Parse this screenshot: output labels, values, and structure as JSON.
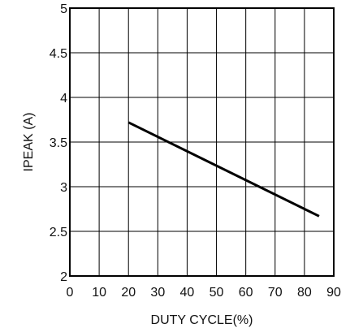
{
  "chart_data": {
    "type": "line",
    "title": "",
    "xlabel": "DUTY CYCLE(%)",
    "ylabel": "IPEAK (A)",
    "xlim": [
      0,
      90
    ],
    "ylim": [
      2,
      5
    ],
    "x_ticks": [
      0,
      10,
      20,
      30,
      40,
      50,
      60,
      70,
      80,
      90
    ],
    "y_ticks": [
      2,
      2.5,
      3,
      3.5,
      4,
      4.5,
      5
    ],
    "x_tick_labels": [
      "0",
      "10",
      "20",
      "30",
      "40",
      "50",
      "60",
      "70",
      "80",
      "90"
    ],
    "y_tick_labels": [
      "2",
      "2.5",
      "3",
      "3.5",
      "4",
      "4.5",
      "5"
    ],
    "grid": true,
    "series": [
      {
        "x": [
          20,
          85
        ],
        "y": [
          3.72,
          2.67
        ],
        "color": "#000000"
      }
    ]
  }
}
